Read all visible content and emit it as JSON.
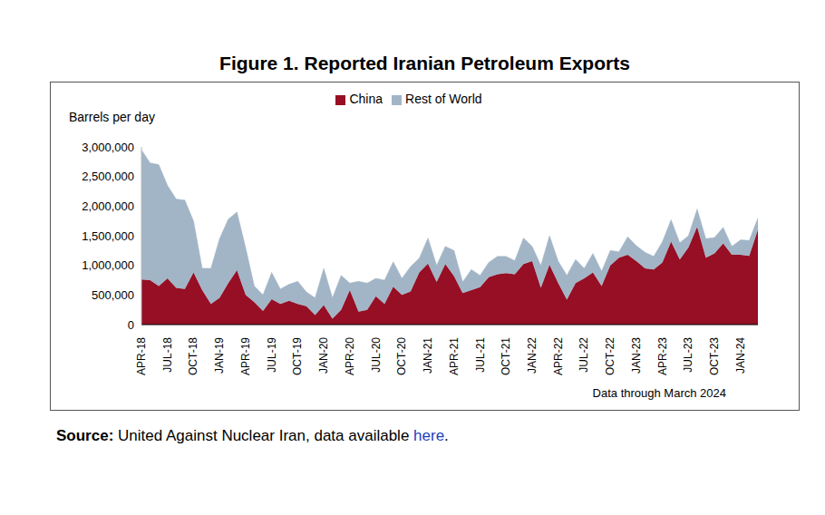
{
  "chart_data": {
    "type": "area",
    "title": "Figure 1. Reported Iranian Petroleum Exports",
    "y_label": "Barrels per day",
    "annotation": "Data through March 2024",
    "source": {
      "prefix": "Source:",
      "text": "United Against Nuclear Iran, data available",
      "link": "here",
      "suffix": "."
    },
    "categories": [
      "APR-18",
      null,
      null,
      "JUL-18",
      null,
      null,
      "OCT-18",
      null,
      null,
      "JAN-19",
      null,
      null,
      "APR-19",
      null,
      null,
      "JUL-19",
      null,
      null,
      "OCT-19",
      null,
      null,
      "JAN-20",
      null,
      null,
      "APR-20",
      null,
      null,
      "JUL-20",
      null,
      null,
      "OCT-20",
      null,
      null,
      "JAN-21",
      null,
      null,
      "APR-21",
      null,
      null,
      "JUL-21",
      null,
      null,
      "OCT-21",
      null,
      null,
      "JAN-22",
      null,
      null,
      "APR-22",
      null,
      null,
      "JUL-22",
      null,
      null,
      "OCT-22",
      null,
      null,
      "JAN-23",
      null,
      null,
      "APR-23",
      null,
      null,
      "JUL-23",
      null,
      null,
      "OCT-23",
      null,
      null,
      "JAN-24",
      null,
      null
    ],
    "series": [
      {
        "name": "China",
        "color": "#960f24",
        "values": [
          760000,
          750000,
          650000,
          780000,
          620000,
          600000,
          880000,
          580000,
          350000,
          450000,
          700000,
          920000,
          500000,
          380000,
          230000,
          430000,
          350000,
          400000,
          350000,
          310000,
          160000,
          330000,
          100000,
          250000,
          580000,
          220000,
          250000,
          480000,
          350000,
          640000,
          500000,
          560000,
          880000,
          1030000,
          720000,
          1020000,
          820000,
          530000,
          580000,
          630000,
          800000,
          850000,
          870000,
          850000,
          1020000,
          1070000,
          620000,
          1010000,
          700000,
          420000,
          700000,
          780000,
          880000,
          650000,
          1000000,
          1130000,
          1180000,
          1070000,
          950000,
          930000,
          1050000,
          1400000,
          1100000,
          1300000,
          1650000,
          1130000,
          1200000,
          1370000,
          1180000,
          1180000,
          1160000,
          1600000
        ]
      },
      {
        "name": "Rest of World",
        "color": "#a2b5c6",
        "values": [
          2190000,
          1980000,
          2050000,
          1570000,
          1500000,
          1500000,
          870000,
          370000,
          600000,
          1000000,
          1080000,
          980000,
          800000,
          270000,
          270000,
          450000,
          250000,
          280000,
          380000,
          240000,
          290000,
          620000,
          350000,
          580000,
          120000,
          510000,
          450000,
          300000,
          400000,
          420000,
          280000,
          420000,
          240000,
          430000,
          280000,
          300000,
          430000,
          190000,
          350000,
          200000,
          250000,
          300000,
          280000,
          230000,
          440000,
          250000,
          380000,
          490000,
          370000,
          410000,
          400000,
          170000,
          320000,
          250000,
          250000,
          100000,
          300000,
          260000,
          270000,
          220000,
          350000,
          370000,
          280000,
          200000,
          300000,
          320000,
          270000,
          270000,
          140000,
          250000,
          260000,
          200000
        ]
      }
    ],
    "ylim": [
      0,
      3000000
    ],
    "yticks": [
      0,
      {
        "value": 500000,
        "label": "500,000"
      },
      {
        "value": 1000000,
        "label": "1,000,000"
      },
      {
        "value": 1500000,
        "label": "1,500,000"
      },
      {
        "value": 2000000,
        "label": "2,000,000"
      },
      {
        "value": 2500000,
        "label": "2,500,000"
      },
      {
        "value": 3000000,
        "label": "3,000,000"
      }
    ],
    "stacked": true,
    "grid": false,
    "legend": "top"
  }
}
